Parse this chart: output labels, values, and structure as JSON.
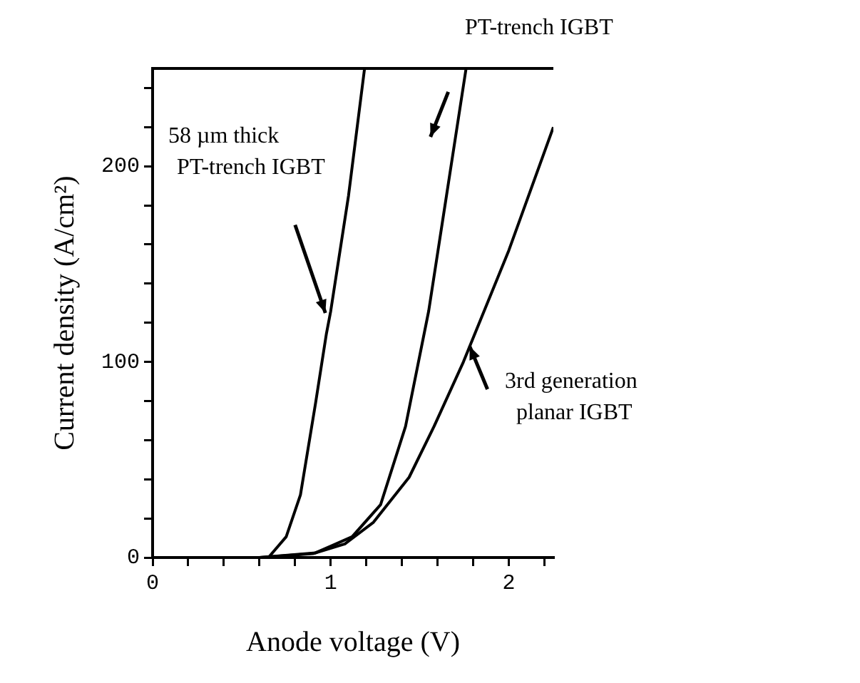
{
  "chart_data": {
    "type": "line",
    "xlabel": "Anode voltage (V)",
    "ylabel": "Current density (A/cm²)",
    "xlim": [
      0,
      2.25
    ],
    "ylim": [
      0,
      250
    ],
    "xticks": [
      0,
      {
        "value": 0.2,
        "label": null
      },
      {
        "value": 0.4,
        "label": null
      },
      {
        "value": 0.6,
        "label": null
      },
      {
        "value": 0.8,
        "label": null
      },
      1,
      {
        "value": 1.2,
        "label": null
      },
      {
        "value": 1.4,
        "label": null
      },
      {
        "value": 1.6,
        "label": null
      },
      {
        "value": 1.8,
        "label": null
      },
      2,
      {
        "value": 2.2,
        "label": null
      }
    ],
    "yticks": [
      0,
      {
        "value": 20,
        "label": null
      },
      {
        "value": 40,
        "label": null
      },
      {
        "value": 60,
        "label": null
      },
      {
        "value": 80,
        "label": null
      },
      100,
      {
        "value": 120,
        "label": null
      },
      {
        "value": 140,
        "label": null
      },
      {
        "value": 160,
        "label": null
      },
      {
        "value": 180,
        "label": null
      },
      200,
      {
        "value": 220,
        "label": null
      },
      {
        "value": 240,
        "label": null
      }
    ],
    "grid": false,
    "legend": false,
    "marker": "none",
    "line_style": "solid",
    "series": [
      {
        "name": "58 µm thick\nPT-trench IGBT",
        "color": "#000000",
        "x": [
          0,
          0.65,
          0.75,
          0.83,
          0.915,
          0.975,
          1.0,
          1.1,
          1.19
        ],
        "values": [
          0,
          0,
          10.6,
          32,
          79,
          114,
          126,
          185,
          250
        ]
      },
      {
        "name": "PT-trench IGBT",
        "color": "#000000",
        "x": [
          0,
          0.6,
          0.915,
          1.12,
          1.28,
          1.42,
          1.55,
          1.65,
          1.76
        ],
        "values": [
          0,
          0,
          2.4,
          10.6,
          27,
          67,
          126,
          185,
          250
        ]
      },
      {
        "name": "3rd generation\nplanar IGBT",
        "color": "#000000",
        "x": [
          0,
          0.6,
          0.9,
          1.08,
          1.24,
          1.44,
          1.58,
          1.745,
          2.0,
          2.25
        ],
        "values": [
          0,
          0,
          2,
          7,
          18,
          41,
          67,
          100,
          157,
          220
        ]
      }
    ]
  }
}
